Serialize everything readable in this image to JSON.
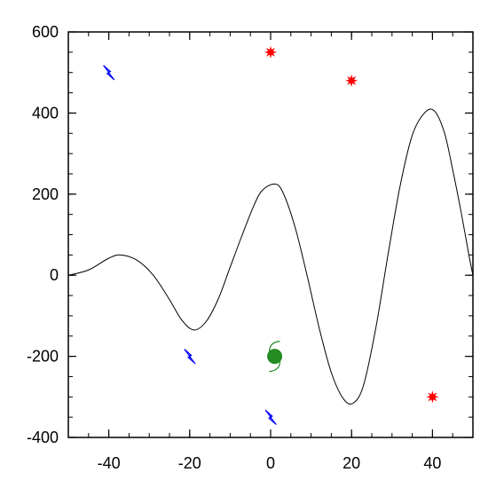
{
  "chart_data": {
    "type": "line",
    "title": "",
    "xlabel": "",
    "ylabel": "",
    "xlim": [
      -50,
      50
    ],
    "ylim": [
      -400,
      600
    ],
    "x_ticks": [
      -40,
      -20,
      0,
      20,
      40
    ],
    "y_ticks": [
      -400,
      -200,
      0,
      200,
      400,
      600
    ],
    "x_tick_labels": [
      "-40",
      "-20",
      "0",
      "20",
      "40"
    ],
    "y_tick_labels": [
      "-400",
      "-200",
      "0",
      "200",
      "400",
      "600"
    ],
    "x_minor_step": 5,
    "y_minor_step": 50,
    "grid": false,
    "legend": "none",
    "series": [
      {
        "style": "line",
        "color": "#000000",
        "x": [
          -50,
          -45,
          -40,
          -37,
          -33,
          -29,
          -25,
          -22,
          -19,
          -16,
          -13,
          -10,
          -7,
          -4,
          -2,
          1,
          3,
          6,
          9,
          12,
          15,
          18,
          20.5,
          23,
          26,
          29,
          32,
          35,
          38,
          40.5,
          43,
          45,
          47,
          49,
          50
        ],
        "y": [
          0,
          13,
          42,
          50,
          37,
          0,
          -60,
          -110,
          -135,
          -115,
          -60,
          20,
          100,
          175,
          210,
          225,
          205,
          120,
          0,
          -130,
          -240,
          -305,
          -315,
          -270,
          -130,
          50,
          220,
          345,
          400,
          405,
          350,
          260,
          160,
          50,
          0
        ]
      },
      {
        "style": "markers",
        "marker": "star-burst",
        "color": "#ff0000",
        "x": [
          0,
          20,
          40
        ],
        "y": [
          550,
          480,
          -300
        ]
      },
      {
        "style": "markers",
        "marker": "lightning",
        "color": "#0000ff",
        "x": [
          -40,
          -20,
          0
        ],
        "y": [
          500,
          -200,
          -350
        ]
      },
      {
        "style": "markers",
        "marker": "hurricane",
        "color": "#228b22",
        "x": [
          1
        ],
        "y": [
          -200
        ]
      }
    ]
  }
}
